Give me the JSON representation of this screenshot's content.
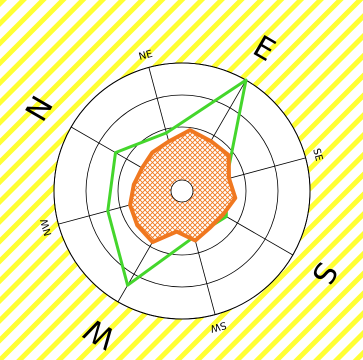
{
  "chart_data": {
    "type": "radar",
    "title": "",
    "rotation_deg": -60,
    "center_label": "",
    "background": {
      "stripe_color": "#ffff33",
      "base_color": "#ffffff"
    },
    "directions": [
      "N",
      "NE",
      "E",
      "SE",
      "S",
      "SW",
      "W",
      "NW"
    ],
    "major_directions": [
      "N",
      "E",
      "S",
      "W"
    ],
    "radial_range": [
      0,
      100
    ],
    "rings": [
      25,
      50,
      75,
      100
    ],
    "series": [
      {
        "kind": "line",
        "color": "#44d62c",
        "values": [
          60,
          47,
          100,
          36,
          40,
          37,
          85,
          60
        ]
      },
      {
        "kind": "filled",
        "color": "#f07820",
        "fill_pattern": "crosshatch",
        "values": [
          36,
          38,
          40,
          48,
          45,
          46,
          38,
          42,
          37,
          36,
          40,
          32,
          46,
          44,
          42,
          38
        ]
      }
    ]
  }
}
